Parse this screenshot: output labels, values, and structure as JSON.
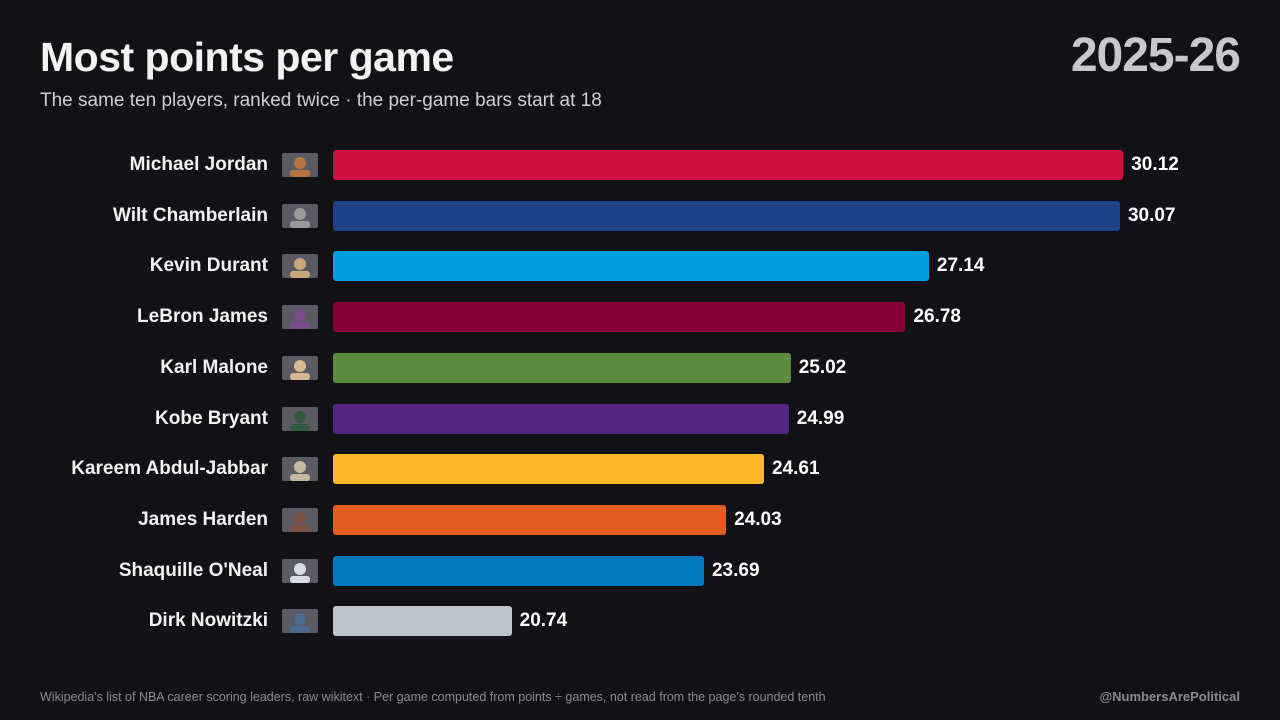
{
  "header": {
    "title": "Most points per game",
    "subtitle": "The same ten players, ranked twice · the per-game bars start at 18",
    "season": "2025-26"
  },
  "footer": {
    "source": "Wikipedia's list of NBA career scoring leaders, raw wikitext · Per game computed from points ÷ games, not read from the page's rounded tenth",
    "credit": "@NumbersArePolitical"
  },
  "chart_data": {
    "type": "bar",
    "orientation": "horizontal",
    "title": "Most points per game",
    "xlim": [
      18,
      31
    ],
    "categories": [
      "Michael Jordan",
      "Wilt Chamberlain",
      "Kevin Durant",
      "LeBron James",
      "Karl Malone",
      "Kobe Bryant",
      "Kareem Abdul-Jabbar",
      "James Harden",
      "Shaquille O'Neal",
      "Dirk Nowitzki"
    ],
    "values": [
      30.12,
      30.07,
      27.14,
      26.78,
      25.02,
      24.99,
      24.61,
      24.03,
      23.69,
      20.74
    ],
    "labels": [
      "30.12",
      "30.07",
      "27.14",
      "26.78",
      "25.02",
      "24.99",
      "24.61",
      "24.03",
      "23.69",
      "20.74"
    ],
    "colors": [
      "#ce1141",
      "#1d428a",
      "#00a0e0",
      "#860038",
      "#5a8b3f",
      "#552583",
      "#fdb927",
      "#e25b1f",
      "#0077c0",
      "#bec4ca"
    ],
    "thumb_colors": [
      "#b8743e",
      "#9a9a9a",
      "#c9a77a",
      "#7a4a8a",
      "#d8b890",
      "#2f5a3f",
      "#c8b8a0",
      "#7a5040",
      "#d8dde2",
      "#4a6a90"
    ],
    "grid": false,
    "legend": "none"
  }
}
